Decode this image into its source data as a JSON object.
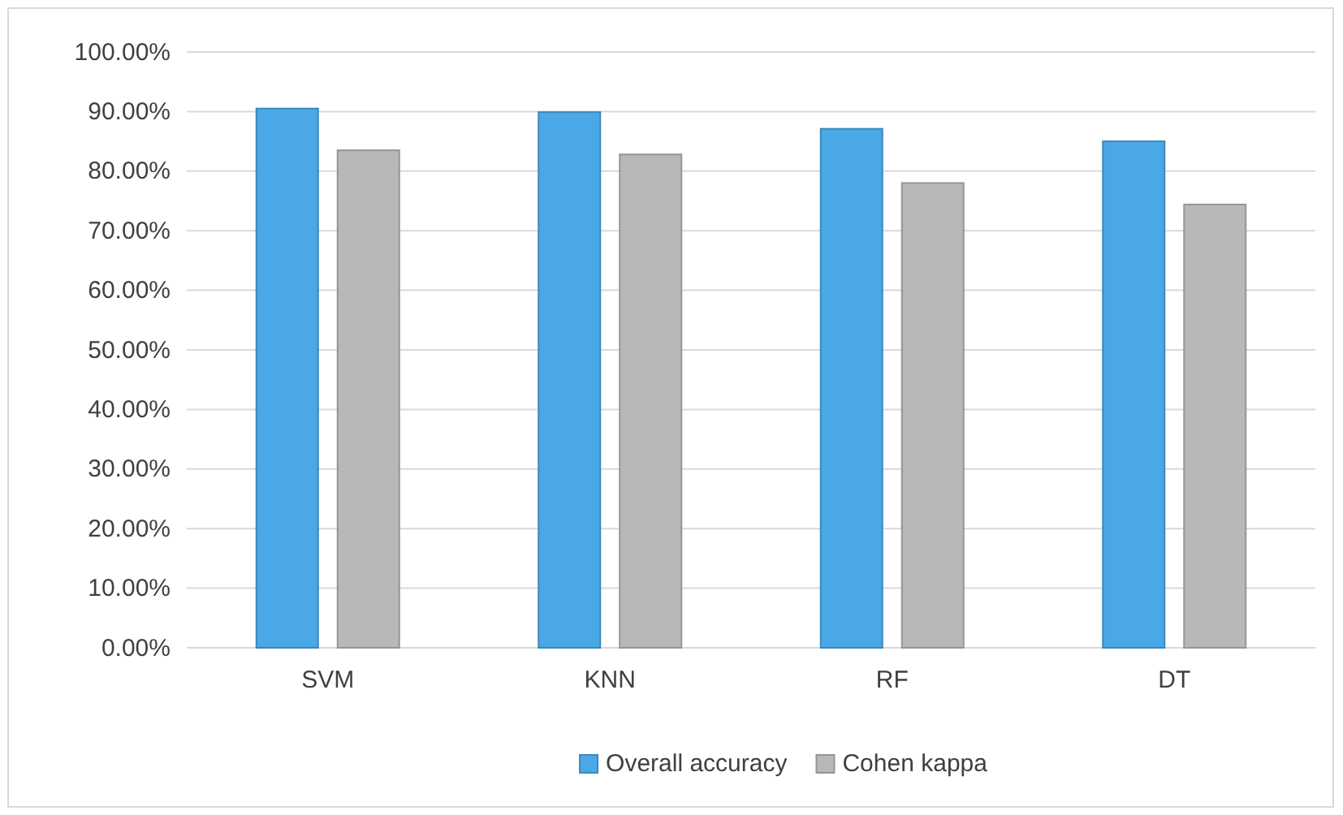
{
  "chart_data": {
    "type": "bar",
    "categories": [
      "SVM",
      "KNN",
      "RF",
      "DT"
    ],
    "series": [
      {
        "name": "Overall accuracy",
        "color": "#4aa8e6",
        "values": [
          90.5,
          89.9,
          87.1,
          85.0
        ]
      },
      {
        "name": "Cohen kappa",
        "color": "#b8b8b8",
        "values": [
          83.5,
          82.8,
          78.0,
          74.4
        ]
      }
    ],
    "ylim": [
      0,
      100
    ],
    "yticks": [
      {
        "value": 0,
        "label": "0.00%"
      },
      {
        "value": 10,
        "label": "10.00%"
      },
      {
        "value": 20,
        "label": "20.00%"
      },
      {
        "value": 30,
        "label": "30.00%"
      },
      {
        "value": 40,
        "label": "40.00%"
      },
      {
        "value": 50,
        "label": "50.00%"
      },
      {
        "value": 60,
        "label": "60.00%"
      },
      {
        "value": 70,
        "label": "70.00%"
      },
      {
        "value": 80,
        "label": "80.00%"
      },
      {
        "value": 90,
        "label": "90.00%"
      },
      {
        "value": 100,
        "label": "100.00%"
      }
    ],
    "grid": "y",
    "legend": "bottom"
  }
}
